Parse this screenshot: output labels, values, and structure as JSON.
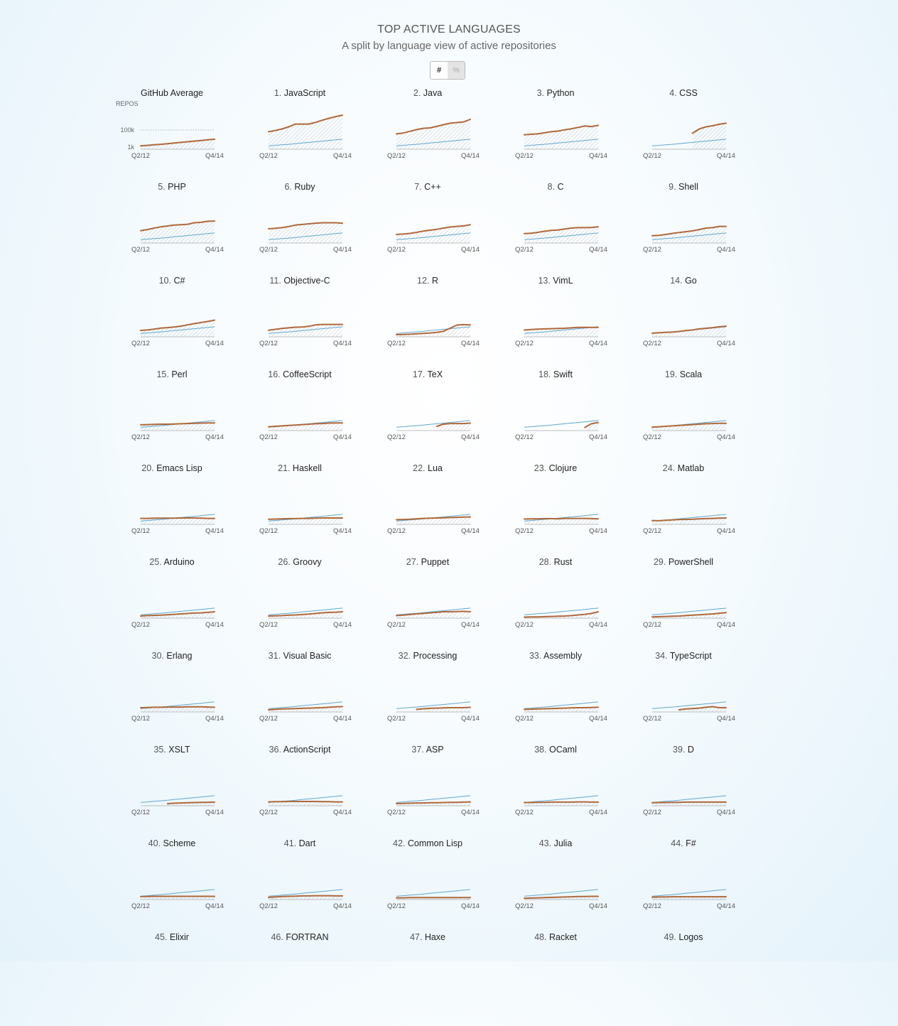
{
  "header": {
    "title": "TOP ACTIVE LANGUAGES",
    "subtitle": "A split by language view of active repositories"
  },
  "toggle": {
    "count_label": "#",
    "percent_label": "%",
    "selected": "#"
  },
  "colors": {
    "language_line": "#b0683a",
    "average_line": "#5ea8d0",
    "hatch": "#c8c8c8"
  },
  "chart_data": {
    "type": "line",
    "scale": "log",
    "y_axis_label": "REPOS",
    "y_ticks": [
      "100k",
      "1k"
    ],
    "x_ticks": [
      "Q2/12",
      "Q4/14"
    ],
    "x_range": [
      "Q2/12",
      "Q4/14"
    ],
    "grid": "dotted line at 100k (first panel only)",
    "average_series": {
      "name": "GitHub Average",
      "values": [
        0.16,
        0.18,
        0.21,
        0.23,
        0.26,
        0.29,
        0.32,
        0.35,
        0.38,
        0.41,
        0.44,
        0.47
      ]
    },
    "panels": [
      {
        "label": "GitHub Average",
        "values": [
          0.16,
          0.18,
          0.21,
          0.23,
          0.26,
          0.29,
          0.32,
          0.35,
          0.38,
          0.41,
          0.44,
          0.47
        ]
      },
      {
        "rank": "1.",
        "name": "JavaScript",
        "values": [
          0.82,
          0.88,
          0.95,
          1.05,
          1.18,
          1.18,
          1.18,
          1.26,
          1.36,
          1.45,
          1.53,
          1.6
        ]
      },
      {
        "rank": "2.",
        "name": "Java",
        "values": [
          0.72,
          0.76,
          0.84,
          0.92,
          0.98,
          1.0,
          1.07,
          1.15,
          1.22,
          1.25,
          1.28,
          1.4
        ]
      },
      {
        "rank": "3.",
        "name": "Python",
        "values": [
          0.68,
          0.7,
          0.72,
          0.77,
          0.82,
          0.85,
          0.91,
          0.96,
          1.02,
          1.09,
          1.06,
          1.12
        ]
      },
      {
        "rank": "4.",
        "name": "CSS",
        "values": [
          null,
          null,
          null,
          null,
          null,
          null,
          0.75,
          0.95,
          1.05,
          1.1,
          1.17,
          1.22
        ]
      },
      {
        "rank": "5.",
        "name": "PHP",
        "values": [
          0.58,
          0.63,
          0.7,
          0.76,
          0.8,
          0.84,
          0.86,
          0.88,
          0.95,
          0.97,
          1.02,
          1.03
        ]
      },
      {
        "rank": "6.",
        "name": "Ruby",
        "values": [
          0.67,
          0.69,
          0.72,
          0.77,
          0.84,
          0.87,
          0.9,
          0.93,
          0.95,
          0.95,
          0.95,
          0.93
        ]
      },
      {
        "rank": "7.",
        "name": "C++",
        "values": [
          0.4,
          0.42,
          0.45,
          0.5,
          0.56,
          0.6,
          0.64,
          0.7,
          0.75,
          0.78,
          0.8,
          0.86
        ]
      },
      {
        "rank": "8.",
        "name": "C",
        "values": [
          0.44,
          0.46,
          0.5,
          0.55,
          0.59,
          0.61,
          0.66,
          0.7,
          0.72,
          0.72,
          0.73,
          0.76
        ]
      },
      {
        "rank": "9.",
        "name": "Shell",
        "values": [
          0.34,
          0.36,
          0.4,
          0.45,
          0.49,
          0.53,
          0.57,
          0.63,
          0.7,
          0.72,
          0.78,
          0.78
        ]
      },
      {
        "rank": "10.",
        "name": "C#",
        "values": [
          0.3,
          0.32,
          0.36,
          0.41,
          0.43,
          0.46,
          0.5,
          0.56,
          0.62,
          0.67,
          0.72,
          0.78
        ]
      },
      {
        "rank": "11.",
        "name": "Objective-C",
        "values": [
          0.31,
          0.35,
          0.39,
          0.42,
          0.45,
          0.46,
          0.49,
          0.56,
          0.58,
          0.58,
          0.58,
          0.58
        ]
      },
      {
        "rank": "12.",
        "name": "R",
        "values": [
          0.1,
          0.11,
          0.12,
          0.14,
          0.16,
          0.18,
          0.21,
          0.26,
          0.4,
          0.55,
          0.57,
          0.56
        ]
      },
      {
        "rank": "13.",
        "name": "VimL",
        "values": [
          0.32,
          0.34,
          0.36,
          0.37,
          0.38,
          0.39,
          0.4,
          0.42,
          0.44,
          0.44,
          0.44,
          0.44
        ]
      },
      {
        "rank": "14.",
        "name": "Go",
        "values": [
          0.17,
          0.19,
          0.21,
          0.22,
          0.25,
          0.29,
          0.32,
          0.37,
          0.4,
          0.43,
          0.47,
          0.5
        ]
      },
      {
        "rank": "15.",
        "name": "Perl",
        "values": [
          0.27,
          0.28,
          0.29,
          0.3,
          0.3,
          0.31,
          0.32,
          0.33,
          0.34,
          0.35,
          0.36,
          0.36
        ]
      },
      {
        "rank": "16.",
        "name": "CoffeeScript",
        "values": [
          0.18,
          0.2,
          0.22,
          0.24,
          0.26,
          0.28,
          0.3,
          0.32,
          0.33,
          0.35,
          0.36,
          0.36
        ]
      },
      {
        "rank": "17.",
        "name": "TeX",
        "values": [
          null,
          null,
          null,
          null,
          null,
          null,
          0.2,
          0.3,
          0.33,
          0.33,
          0.33,
          0.35
        ]
      },
      {
        "rank": "18.",
        "name": "Swift",
        "values": [
          null,
          null,
          null,
          null,
          null,
          null,
          null,
          null,
          null,
          0.15,
          0.32,
          0.38
        ]
      },
      {
        "rank": "19.",
        "name": "Scala",
        "values": [
          0.16,
          0.18,
          0.2,
          0.22,
          0.24,
          0.26,
          0.28,
          0.3,
          0.32,
          0.33,
          0.34,
          0.34
        ]
      },
      {
        "rank": "20.",
        "name": "Emacs Lisp",
        "values": [
          0.28,
          0.28,
          0.29,
          0.29,
          0.29,
          0.29,
          0.3,
          0.3,
          0.3,
          0.29,
          0.28,
          0.28
        ]
      },
      {
        "rank": "21.",
        "name": "Haskell",
        "values": [
          0.24,
          0.25,
          0.26,
          0.27,
          0.27,
          0.28,
          0.28,
          0.29,
          0.3,
          0.3,
          0.3,
          0.3
        ]
      },
      {
        "rank": "22.",
        "name": "Lua",
        "values": [
          0.22,
          0.23,
          0.24,
          0.26,
          0.28,
          0.29,
          0.3,
          0.31,
          0.32,
          0.33,
          0.34,
          0.35
        ]
      },
      {
        "rank": "23.",
        "name": "Clojure",
        "values": [
          0.25,
          0.26,
          0.26,
          0.27,
          0.27,
          0.26,
          0.28,
          0.28,
          0.28,
          0.28,
          0.27,
          0.26
        ]
      },
      {
        "rank": "24.",
        "name": "Matlab",
        "values": [
          0.18,
          0.17,
          0.19,
          0.21,
          0.23,
          0.23,
          0.24,
          0.26,
          0.27,
          0.28,
          0.29,
          0.3
        ]
      },
      {
        "rank": "25.",
        "name": "Arduino",
        "values": [
          0.1,
          0.12,
          0.13,
          0.14,
          0.16,
          0.18,
          0.2,
          0.22,
          0.24,
          0.25,
          0.27,
          0.3
        ]
      },
      {
        "rank": "26.",
        "name": "Groovy",
        "values": [
          0.1,
          0.11,
          0.12,
          0.14,
          0.15,
          0.17,
          0.19,
          0.22,
          0.25,
          0.27,
          0.28,
          0.3
        ]
      },
      {
        "rank": "27.",
        "name": "Puppet",
        "values": [
          0.12,
          0.14,
          0.17,
          0.2,
          0.22,
          0.25,
          0.27,
          0.3,
          0.3,
          0.31,
          0.32,
          0.3
        ]
      },
      {
        "rank": "28.",
        "name": "Rust",
        "values": [
          0.05,
          0.06,
          0.06,
          0.07,
          0.08,
          0.09,
          0.1,
          0.12,
          0.15,
          0.18,
          0.22,
          0.3
        ]
      },
      {
        "rank": "29.",
        "name": "PowerShell",
        "values": [
          0.06,
          0.07,
          0.08,
          0.09,
          0.1,
          0.12,
          0.14,
          0.16,
          0.18,
          0.2,
          0.23,
          0.26
        ]
      },
      {
        "rank": "30.",
        "name": "Erlang",
        "values": [
          0.2,
          0.21,
          0.22,
          0.22,
          0.23,
          0.23,
          0.23,
          0.24,
          0.24,
          0.24,
          0.23,
          0.22
        ]
      },
      {
        "rank": "31.",
        "name": "Visual Basic",
        "values": [
          0.1,
          0.12,
          0.14,
          0.15,
          0.16,
          0.17,
          0.18,
          0.19,
          0.2,
          0.22,
          0.24,
          0.25
        ]
      },
      {
        "rank": "32.",
        "name": "Processing",
        "values": [
          null,
          null,
          null,
          0.12,
          0.15,
          0.17,
          0.18,
          0.19,
          0.2,
          0.2,
          0.2,
          0.22
        ]
      },
      {
        "rank": "33.",
        "name": "Assembly",
        "values": [
          0.12,
          0.13,
          0.14,
          0.15,
          0.16,
          0.17,
          0.18,
          0.19,
          0.2,
          0.2,
          0.21,
          0.22
        ]
      },
      {
        "rank": "34.",
        "name": "TypeScript",
        "values": [
          null,
          null,
          null,
          null,
          0.1,
          0.14,
          0.16,
          0.18,
          0.22,
          0.25,
          0.2,
          0.2
        ]
      },
      {
        "rank": "35.",
        "name": "XSLT",
        "values": [
          null,
          null,
          null,
          null,
          0.1,
          0.12,
          0.13,
          0.14,
          0.15,
          0.16,
          0.16,
          0.17
        ]
      },
      {
        "rank": "36.",
        "name": "ActionScript",
        "values": [
          0.18,
          0.19,
          0.19,
          0.2,
          0.2,
          0.2,
          0.2,
          0.2,
          0.19,
          0.19,
          0.18,
          0.18
        ]
      },
      {
        "rank": "37.",
        "name": "ASP",
        "values": [
          0.1,
          0.11,
          0.12,
          0.13,
          0.13,
          0.14,
          0.14,
          0.15,
          0.16,
          0.16,
          0.17,
          0.18
        ]
      },
      {
        "rank": "38.",
        "name": "OCaml",
        "values": [
          0.15,
          0.15,
          0.16,
          0.16,
          0.17,
          0.17,
          0.17,
          0.17,
          0.18,
          0.18,
          0.17,
          0.17
        ]
      },
      {
        "rank": "39.",
        "name": "D",
        "values": [
          0.14,
          0.15,
          0.15,
          0.16,
          0.16,
          0.17,
          0.17,
          0.17,
          0.17,
          0.17,
          0.17,
          0.17
        ]
      },
      {
        "rank": "40.",
        "name": "Scheme",
        "values": [
          0.14,
          0.14,
          0.15,
          0.15,
          0.15,
          0.15,
          0.15,
          0.15,
          0.15,
          0.15,
          0.15,
          0.15
        ]
      },
      {
        "rank": "41.",
        "name": "Dart",
        "values": [
          0.1,
          0.12,
          0.14,
          0.15,
          0.16,
          0.17,
          0.17,
          0.18,
          0.18,
          0.18,
          0.17,
          0.17
        ]
      },
      {
        "rank": "42.",
        "name": "Common Lisp",
        "values": [
          0.08,
          0.08,
          0.09,
          0.09,
          0.09,
          0.09,
          0.09,
          0.09,
          0.09,
          0.09,
          0.09,
          0.09
        ]
      },
      {
        "rank": "43.",
        "name": "Julia",
        "values": [
          0.06,
          0.07,
          0.08,
          0.09,
          0.1,
          0.11,
          0.12,
          0.13,
          0.14,
          0.14,
          0.15,
          0.15
        ]
      },
      {
        "rank": "44.",
        "name": "F#",
        "values": [
          0.11,
          0.12,
          0.12,
          0.13,
          0.13,
          0.13,
          0.13,
          0.13,
          0.13,
          0.13,
          0.13,
          0.13
        ]
      }
    ],
    "next_labels": [
      {
        "rank": "45.",
        "name": "Elixir"
      },
      {
        "rank": "46.",
        "name": "FORTRAN"
      },
      {
        "rank": "47.",
        "name": "Haxe"
      },
      {
        "rank": "48.",
        "name": "Racket"
      },
      {
        "rank": "49.",
        "name": "Logos"
      }
    ]
  }
}
